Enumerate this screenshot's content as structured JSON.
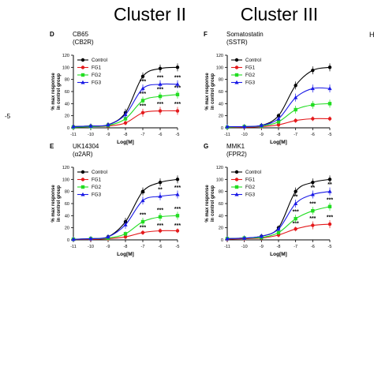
{
  "clusters": [
    {
      "id": "cluster-ii",
      "label": "Cluster II"
    },
    {
      "id": "cluster-iii",
      "label": "Cluster III"
    }
  ],
  "edge_labels": {
    "left_tick": "-5",
    "right_letter": "H"
  },
  "colors": {
    "Control": "#000000",
    "FG1": "#e41a1c",
    "FG2": "#22dd22",
    "FG3": "#1a1ae6"
  },
  "chart_data": [
    {
      "type": "line",
      "panel": "D",
      "title": "CB65",
      "subtitle": "(CB2R)",
      "xlabel": "Log[M]",
      "ylabel": "% max response in control group",
      "x": [
        -11,
        -10,
        -9,
        -8,
        -7,
        -6,
        -5
      ],
      "xlim": [
        -11,
        -5
      ],
      "ylim": [
        0,
        120
      ],
      "xticks": [
        -11,
        -10,
        -9,
        -8,
        -7,
        -6,
        -5
      ],
      "yticks": [
        0,
        20,
        40,
        60,
        80,
        100,
        120
      ],
      "legend": "top-left",
      "series": [
        {
          "name": "Control",
          "values": [
            2,
            3,
            5,
            25,
            85,
            98,
            100
          ],
          "marks": [
            "",
            "",
            "",
            "",
            "",
            "",
            ""
          ]
        },
        {
          "name": "FG1",
          "values": [
            1,
            2,
            3,
            8,
            25,
            28,
            28
          ],
          "marks": [
            "",
            "",
            "",
            "",
            "***",
            "***",
            "***"
          ]
        },
        {
          "name": "FG2",
          "values": [
            1,
            2,
            4,
            15,
            45,
            52,
            55
          ],
          "marks": [
            "",
            "",
            "",
            "",
            "***",
            "***",
            "***"
          ]
        },
        {
          "name": "FG3",
          "values": [
            2,
            3,
            5,
            22,
            65,
            72,
            72
          ],
          "marks": [
            "",
            "",
            "",
            "",
            "***",
            "***",
            "***"
          ]
        }
      ]
    },
    {
      "type": "line",
      "panel": "F",
      "title": "Somatostatin",
      "subtitle": "(SSTR)",
      "xlabel": "Log[M]",
      "ylabel": "% max response in control group",
      "x": [
        -11,
        -10,
        -9,
        -8,
        -7,
        -6,
        -5
      ],
      "xlim": [
        -11,
        -5
      ],
      "ylim": [
        0,
        120
      ],
      "xticks": [
        -11,
        -10,
        -9,
        -8,
        -7,
        -6,
        -5
      ],
      "yticks": [
        0,
        20,
        40,
        60,
        80,
        100,
        120
      ],
      "legend": "top-left",
      "series": [
        {
          "name": "Control",
          "values": [
            1,
            2,
            4,
            20,
            70,
            95,
            100
          ],
          "marks": [
            "",
            "",
            "",
            "",
            "",
            "",
            ""
          ]
        },
        {
          "name": "FG1",
          "values": [
            1,
            1,
            2,
            5,
            12,
            15,
            15
          ],
          "marks": [
            "",
            "",
            "",
            "",
            "",
            "",
            ""
          ]
        },
        {
          "name": "FG2",
          "values": [
            1,
            2,
            3,
            10,
            30,
            38,
            40
          ],
          "marks": [
            "",
            "",
            "",
            "",
            "",
            "",
            ""
          ]
        },
        {
          "name": "FG3",
          "values": [
            2,
            2,
            4,
            15,
            50,
            65,
            65
          ],
          "marks": [
            "",
            "",
            "",
            "",
            "",
            "",
            ""
          ]
        }
      ]
    },
    {
      "type": "line",
      "panel": "E",
      "title": "UK14304",
      "subtitle": "(α2AR)",
      "xlabel": "Log[M]",
      "ylabel": "% max response in control group",
      "x": [
        -11,
        -10,
        -9,
        -8,
        -7,
        -6,
        -5
      ],
      "xlim": [
        -11,
        -5
      ],
      "ylim": [
        0,
        120
      ],
      "xticks": [
        -11,
        -10,
        -9,
        -8,
        -7,
        -6,
        -5
      ],
      "yticks": [
        0,
        20,
        40,
        60,
        80,
        100,
        120
      ],
      "legend": "top-left",
      "series": [
        {
          "name": "Control",
          "values": [
            1,
            2,
            5,
            30,
            80,
            95,
            100
          ],
          "marks": [
            "",
            "",
            "",
            "",
            "",
            "",
            ""
          ]
        },
        {
          "name": "FG1",
          "values": [
            1,
            1,
            2,
            5,
            12,
            15,
            15
          ],
          "marks": [
            "",
            "",
            "",
            "",
            "***",
            "***",
            "***"
          ]
        },
        {
          "name": "FG2",
          "values": [
            1,
            2,
            3,
            10,
            30,
            38,
            40
          ],
          "marks": [
            "",
            "",
            "",
            "",
            "***",
            "***",
            "***"
          ]
        },
        {
          "name": "FG3",
          "values": [
            1,
            2,
            5,
            25,
            65,
            72,
            75
          ],
          "marks": [
            "",
            "",
            "",
            "",
            "**",
            "**",
            "***"
          ]
        }
      ]
    },
    {
      "type": "line",
      "panel": "G",
      "title": "MMK1",
      "subtitle": "(FPR2)",
      "xlabel": "Log[M]",
      "ylabel": "% max response in control group",
      "x": [
        -11,
        -10,
        -9,
        -8,
        -7,
        -6,
        -5
      ],
      "xlim": [
        -11,
        -5
      ],
      "ylim": [
        0,
        120
      ],
      "xticks": [
        -11,
        -10,
        -9,
        -8,
        -7,
        -6,
        -5
      ],
      "yticks": [
        0,
        20,
        40,
        60,
        80,
        100,
        120
      ],
      "legend": "top-left",
      "series": [
        {
          "name": "Control",
          "values": [
            2,
            3,
            6,
            20,
            80,
            95,
            100
          ],
          "marks": [
            "",
            "",
            "",
            "",
            "",
            "",
            ""
          ]
        },
        {
          "name": "FG1",
          "values": [
            1,
            2,
            3,
            8,
            18,
            24,
            26
          ],
          "marks": [
            "",
            "",
            "",
            "",
            "***",
            "***",
            "***"
          ]
        },
        {
          "name": "FG2",
          "values": [
            2,
            3,
            4,
            12,
            35,
            48,
            55
          ],
          "marks": [
            "",
            "",
            "",
            "",
            "***",
            "***",
            "***"
          ]
        },
        {
          "name": "FG3",
          "values": [
            2,
            3,
            6,
            18,
            60,
            75,
            80
          ],
          "marks": [
            "",
            "",
            "",
            "",
            "**",
            "**",
            "**"
          ]
        }
      ]
    }
  ]
}
